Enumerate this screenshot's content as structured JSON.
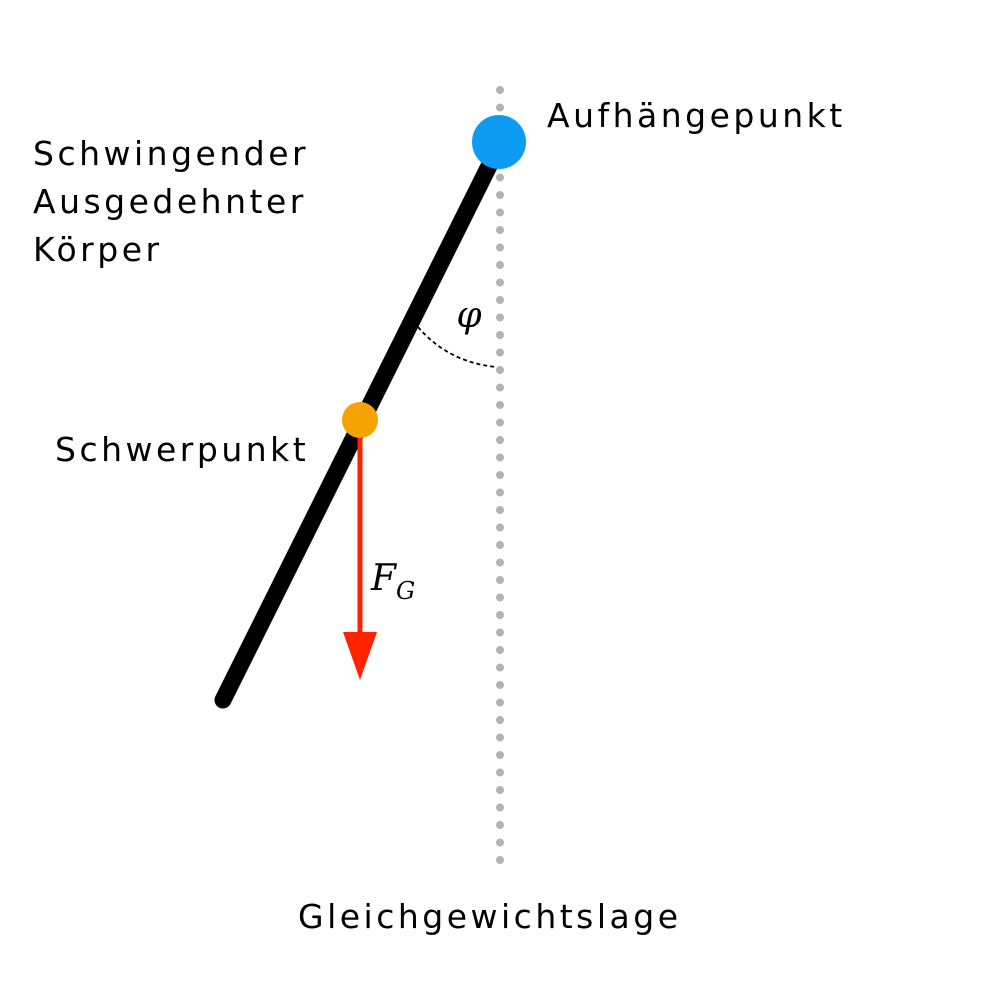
{
  "labels": {
    "body_line1": "Schwingender",
    "body_line2": "Ausgedehnter",
    "body_line3": "Körper",
    "pivot": "Aufhängepunkt",
    "center_of_mass": "Schwerpunkt",
    "equilibrium": "Gleichgewichtslage",
    "angle_symbol": "φ",
    "force_symbol": "F",
    "force_subscript": "G"
  },
  "colors": {
    "rod": "#000000",
    "pivot": "#0d9cf2",
    "center_of_mass": "#f5a300",
    "force_arrow": "#ff2200",
    "equilibrium_line": "#b3b3b3",
    "text": "#000000"
  }
}
